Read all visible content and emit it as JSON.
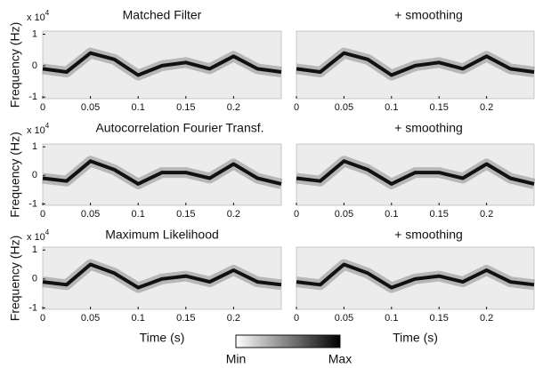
{
  "chart_data": [
    {
      "type": "line",
      "title": "Matched Filter",
      "multiplier": {
        "base": "x 10",
        "exponent": "4"
      },
      "ylabel": "Frequency (Hz)",
      "x": [
        0,
        0.025,
        0.05,
        0.075,
        0.1,
        0.125,
        0.15,
        0.175,
        0.2,
        0.225,
        0.25
      ],
      "values": [
        -0.1,
        -0.2,
        0.4,
        0.2,
        -0.3,
        0.0,
        0.1,
        -0.1,
        0.3,
        -0.1,
        -0.2
      ],
      "xlim": [
        0,
        0.25
      ],
      "ylim": [
        -1.05,
        1.1
      ],
      "xticks": [
        0,
        0.05,
        0.1,
        0.15,
        0.2
      ],
      "yticks": [
        1,
        0,
        -1
      ],
      "color": "#111111"
    },
    {
      "type": "line",
      "title": "+ smoothing",
      "x": [
        0,
        0.025,
        0.05,
        0.075,
        0.1,
        0.125,
        0.15,
        0.175,
        0.2,
        0.225,
        0.25
      ],
      "values": [
        -0.1,
        -0.2,
        0.4,
        0.2,
        -0.3,
        0.0,
        0.1,
        -0.1,
        0.3,
        -0.1,
        -0.2
      ],
      "xlim": [
        0,
        0.25
      ],
      "ylim": [
        -1.05,
        1.1
      ],
      "xticks": [
        0,
        0.05,
        0.1,
        0.15,
        0.2
      ],
      "color": "#111111"
    },
    {
      "type": "line",
      "title": "Autocorrelation Fourier Transf.",
      "multiplier": {
        "base": "x 10",
        "exponent": "4"
      },
      "ylabel": "Frequency (Hz)",
      "x": [
        0,
        0.025,
        0.05,
        0.075,
        0.1,
        0.125,
        0.15,
        0.175,
        0.2,
        0.225,
        0.25
      ],
      "values": [
        -0.1,
        -0.2,
        0.5,
        0.2,
        -0.3,
        0.1,
        0.1,
        -0.1,
        0.4,
        -0.1,
        -0.3
      ],
      "xlim": [
        0,
        0.25
      ],
      "ylim": [
        -1.05,
        1.1
      ],
      "xticks": [
        0,
        0.05,
        0.1,
        0.15,
        0.2
      ],
      "yticks": [
        1,
        0,
        -1
      ],
      "color": "#111111"
    },
    {
      "type": "line",
      "title": "+ smoothing",
      "x": [
        0,
        0.025,
        0.05,
        0.075,
        0.1,
        0.125,
        0.15,
        0.175,
        0.2,
        0.225,
        0.25
      ],
      "values": [
        -0.1,
        -0.2,
        0.5,
        0.2,
        -0.3,
        0.1,
        0.1,
        -0.1,
        0.4,
        -0.1,
        -0.3
      ],
      "xlim": [
        0,
        0.25
      ],
      "ylim": [
        -1.05,
        1.1
      ],
      "xticks": [
        0,
        0.05,
        0.1,
        0.15,
        0.2
      ],
      "color": "#111111"
    },
    {
      "type": "line",
      "title": "Maximum Likelihood",
      "multiplier": {
        "base": "x 10",
        "exponent": "4"
      },
      "ylabel": "Frequency (Hz)",
      "xlabel": "Time (s)",
      "x": [
        0,
        0.025,
        0.05,
        0.075,
        0.1,
        0.125,
        0.15,
        0.175,
        0.2,
        0.225,
        0.25
      ],
      "values": [
        -0.1,
        -0.2,
        0.5,
        0.2,
        -0.3,
        0.0,
        0.1,
        -0.1,
        0.3,
        -0.1,
        -0.2
      ],
      "xlim": [
        0,
        0.25
      ],
      "ylim": [
        -1.05,
        1.1
      ],
      "xticks": [
        0,
        0.05,
        0.1,
        0.15,
        0.2
      ],
      "yticks": [
        1,
        0,
        -1
      ],
      "color": "#111111"
    },
    {
      "type": "line",
      "title": "+ smoothing",
      "xlabel": "Time (s)",
      "x": [
        0,
        0.025,
        0.05,
        0.075,
        0.1,
        0.125,
        0.15,
        0.175,
        0.2,
        0.225,
        0.25
      ],
      "values": [
        -0.1,
        -0.2,
        0.5,
        0.2,
        -0.3,
        0.0,
        0.1,
        -0.1,
        0.3,
        -0.1,
        -0.2
      ],
      "xlim": [
        0,
        0.25
      ],
      "ylim": [
        -1.05,
        1.1
      ],
      "xticks": [
        0,
        0.05,
        0.1,
        0.15,
        0.2
      ],
      "color": "#111111"
    }
  ],
  "colorbar": {
    "min_label": "Min",
    "max_label": "Max"
  }
}
